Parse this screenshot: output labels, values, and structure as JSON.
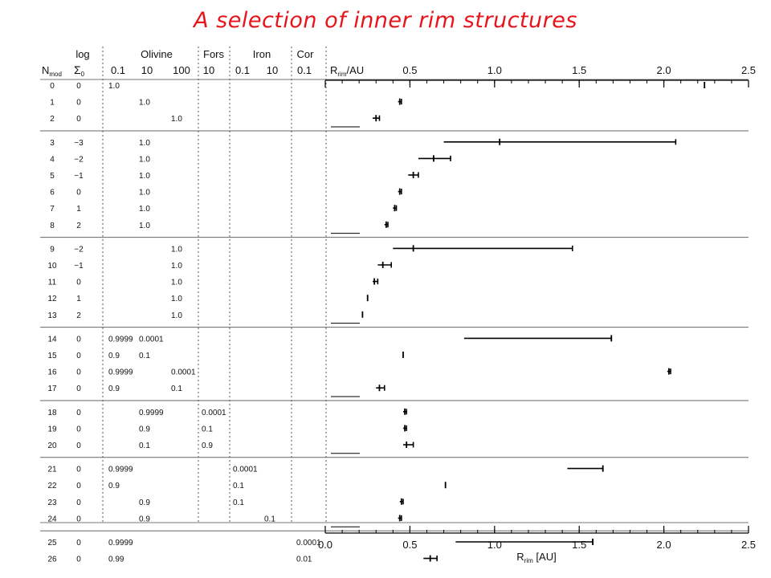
{
  "slide": {
    "title": "A selection of inner rim structures",
    "title_color": "#e8141b"
  },
  "table": {
    "header_top": {
      "log": "log",
      "olivine": "Olivine",
      "fors": "Fors",
      "iron": "Iron",
      "cor": "Cor"
    },
    "header_bottom": {
      "nmod": "N",
      "nmod_sub": "mod",
      "sigma": "Σ",
      "sigma_sub": "0",
      "ol_01": "0.1",
      "ol_10": "10",
      "ol_100": "100",
      "fors_10": "10",
      "iron_01": "0.1",
      "iron_10": "10",
      "cor_01": "0.1",
      "rrim_main": "R",
      "rrim_sub": "rim",
      "rrim_unit": "/AU"
    }
  },
  "chart_data": {
    "type": "scatter",
    "title": "",
    "xlabel": "R_rim [AU]",
    "xlabel_parts": {
      "main": "R",
      "sub": "rim",
      "unit": " [AU]"
    },
    "xlim": [
      0.0,
      2.5
    ],
    "bottom_ticks": [
      "0.0",
      "0.5",
      "1.0",
      "1.5",
      "2.0",
      "2.5"
    ],
    "top_ticks": [
      "0.5",
      "1.0",
      "1.5",
      "2.0",
      "2.5"
    ],
    "tick_values": [
      0.0,
      0.5,
      1.0,
      1.5,
      2.0,
      2.5
    ],
    "top_tick_values": [
      0.5,
      1.0,
      1.5,
      2.0,
      2.5
    ],
    "groups": [
      {
        "rows": [
          {
            "n": "0",
            "log": "0",
            "cells": {
              "ol01": "1.0"
            },
            "r": 2.24,
            "lo": 2.24,
            "hi": 2.24
          },
          {
            "n": "1",
            "log": "0",
            "cells": {
              "ol10": "1.0"
            },
            "r": 0.44,
            "lo": 0.43,
            "hi": 0.45
          },
          {
            "n": "2",
            "log": "0",
            "cells": {
              "ol100": "1.0"
            },
            "r": 0.3,
            "lo": 0.28,
            "hi": 0.32
          }
        ]
      },
      {
        "rows": [
          {
            "n": "3",
            "log": "−3",
            "cells": {
              "ol10": "1.0"
            },
            "r": 1.03,
            "lo": 0.7,
            "hi": 2.07
          },
          {
            "n": "4",
            "log": "−2",
            "cells": {
              "ol10": "1.0"
            },
            "r": 0.64,
            "lo": 0.55,
            "hi": 0.74
          },
          {
            "n": "5",
            "log": "−1",
            "cells": {
              "ol10": "1.0"
            },
            "r": 0.52,
            "lo": 0.49,
            "hi": 0.55
          },
          {
            "n": "6",
            "log": "0",
            "cells": {
              "ol10": "1.0"
            },
            "r": 0.44,
            "lo": 0.43,
            "hi": 0.45
          },
          {
            "n": "7",
            "log": "1",
            "cells": {
              "ol10": "1.0"
            },
            "r": 0.41,
            "lo": 0.4,
            "hi": 0.42
          },
          {
            "n": "8",
            "log": "2",
            "cells": {
              "ol10": "1.0"
            },
            "r": 0.36,
            "lo": 0.35,
            "hi": 0.37
          }
        ]
      },
      {
        "rows": [
          {
            "n": "9",
            "log": "−2",
            "cells": {
              "ol100": "1.0"
            },
            "r": 0.52,
            "lo": 0.4,
            "hi": 1.46
          },
          {
            "n": "10",
            "log": "−1",
            "cells": {
              "ol100": "1.0"
            },
            "r": 0.34,
            "lo": 0.31,
            "hi": 0.39
          },
          {
            "n": "11",
            "log": "0",
            "cells": {
              "ol100": "1.0"
            },
            "r": 0.29,
            "lo": 0.28,
            "hi": 0.31
          },
          {
            "n": "12",
            "log": "1",
            "cells": {
              "ol100": "1.0"
            },
            "r": 0.25,
            "lo": 0.25,
            "hi": 0.25
          },
          {
            "n": "13",
            "log": "2",
            "cells": {
              "ol100": "1.0"
            },
            "r": 0.22,
            "lo": 0.22,
            "hi": 0.22
          }
        ]
      },
      {
        "rows": [
          {
            "n": "14",
            "log": "0",
            "cells": {
              "ol01": "0.9999",
              "ol10": "0.0001"
            },
            "r": 1.69,
            "lo": 0.82,
            "hi": 1.69
          },
          {
            "n": "15",
            "log": "0",
            "cells": {
              "ol01": "0.9",
              "ol10": "0.1"
            },
            "r": 0.46,
            "lo": 0.46,
            "hi": 0.46
          },
          {
            "n": "16",
            "log": "0",
            "cells": {
              "ol01": "0.9999",
              "ol100": "0.0001"
            },
            "r": 2.03,
            "lo": 2.02,
            "hi": 2.04
          },
          {
            "n": "17",
            "log": "0",
            "cells": {
              "ol01": "0.9",
              "ol100": "0.1"
            },
            "r": 0.32,
            "lo": 0.3,
            "hi": 0.35
          }
        ]
      },
      {
        "rows": [
          {
            "n": "18",
            "log": "0",
            "cells": {
              "ol10": "0.9999",
              "fors10": "0.0001"
            },
            "r": 0.47,
            "lo": 0.46,
            "hi": 0.48
          },
          {
            "n": "19",
            "log": "0",
            "cells": {
              "ol10": "0.9",
              "fors10": "0.1"
            },
            "r": 0.47,
            "lo": 0.46,
            "hi": 0.48
          },
          {
            "n": "20",
            "log": "0",
            "cells": {
              "ol10": "0.1",
              "fors10": "0.9"
            },
            "r": 0.48,
            "lo": 0.46,
            "hi": 0.52
          }
        ]
      },
      {
        "rows": [
          {
            "n": "21",
            "log": "0",
            "cells": {
              "ol01": "0.9999",
              "iron01": "0.0001"
            },
            "r": 1.64,
            "lo": 1.43,
            "hi": 1.64
          },
          {
            "n": "22",
            "log": "0",
            "cells": {
              "ol01": "0.9",
              "iron01": "0.1"
            },
            "r": 0.71,
            "lo": 0.71,
            "hi": 0.71
          },
          {
            "n": "23",
            "log": "0",
            "cells": {
              "ol10": "0.9",
              "iron01": "0.1"
            },
            "r": 0.45,
            "lo": 0.44,
            "hi": 0.46
          },
          {
            "n": "24",
            "log": "0",
            "cells": {
              "ol10": "0.9",
              "iron10": "0.1"
            },
            "r": 0.44,
            "lo": 0.43,
            "hi": 0.45
          }
        ]
      },
      {
        "rows": [
          {
            "n": "25",
            "log": "0",
            "cells": {
              "ol01": "0.9999",
              "cor01": "0.0001"
            },
            "r": 1.58,
            "lo": 0.77,
            "hi": 1.58
          },
          {
            "n": "26",
            "log": "0",
            "cells": {
              "ol01": "0.99",
              "cor01": "0.01"
            },
            "r": 0.62,
            "lo": 0.58,
            "hi": 0.66
          }
        ]
      }
    ]
  }
}
